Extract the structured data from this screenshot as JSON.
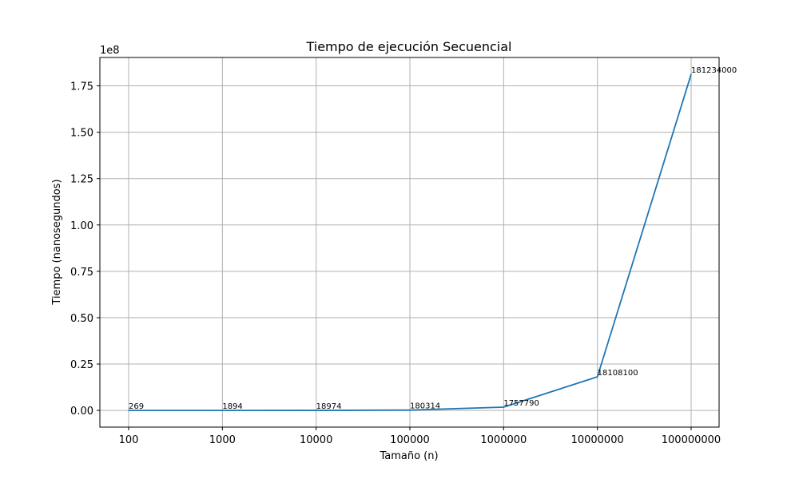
{
  "chart_data": {
    "type": "line",
    "title": "Tiempo de ejecución Secuencial",
    "xlabel": "Tamaño (n)",
    "ylabel": "Tiempo (nanosegundos)",
    "y_offset_label": "1e8",
    "x": [
      "100",
      "1000",
      "10000",
      "100000",
      "1000000",
      "10000000",
      "100000000"
    ],
    "series": [
      {
        "values": [
          269,
          1894,
          18974,
          180314,
          1757790,
          18108100,
          181234000
        ],
        "color": "#1f77b4"
      }
    ],
    "data_labels": [
      "269",
      "1894",
      "18974",
      "180314",
      "1757790",
      "18108100",
      "181234000"
    ],
    "yticks": [
      0,
      25000000,
      50000000,
      75000000,
      100000000,
      125000000,
      150000000,
      175000000
    ],
    "ytick_labels": [
      "0.00",
      "0.25",
      "0.50",
      "0.75",
      "1.00",
      "1.25",
      "1.50",
      "1.75"
    ],
    "ylim": [
      -9000000,
      190300000
    ],
    "grid": true,
    "colors": {
      "line": "#1f77b4",
      "grid": "#b0b0b0"
    }
  }
}
